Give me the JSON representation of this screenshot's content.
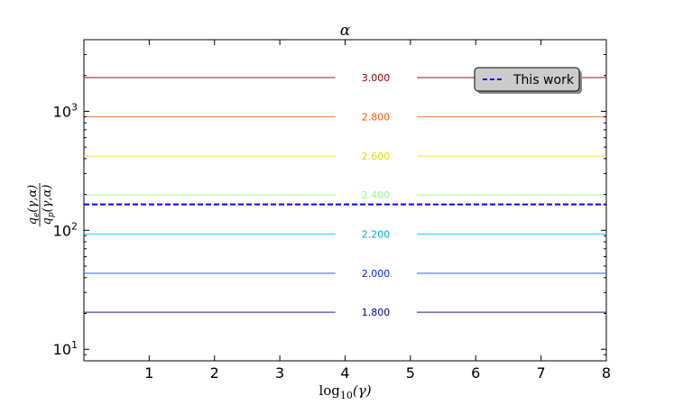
{
  "chart_data": {
    "type": "line",
    "title": "α",
    "xlabel": {
      "base": "log",
      "sub": "10",
      "arg": "(γ)"
    },
    "ylabel": {
      "numerator": {
        "q": "q",
        "sub": "e",
        "args": "(γ,α)"
      },
      "denominator": {
        "q": "q",
        "sub": "p",
        "args": "(γ,α)"
      }
    },
    "xlim": [
      0,
      8
    ],
    "ylim": [
      8,
      4000
    ],
    "yscale": "log",
    "xticks": [
      1,
      2,
      3,
      4,
      5,
      6,
      7,
      8
    ],
    "yticks": [
      {
        "value": 10,
        "base": "10",
        "exp": "1"
      },
      {
        "value": 100,
        "base": "10",
        "exp": "2"
      },
      {
        "value": 1000,
        "base": "10",
        "exp": "3"
      }
    ],
    "contours": [
      {
        "label": "1.800",
        "value": 20.5,
        "color": "#1a1a8c",
        "label_color": "#00008f"
      },
      {
        "label": "2.000",
        "value": 43.5,
        "color": "#2b5fe6",
        "label_color": "#0026d9"
      },
      {
        "label": "2.200",
        "value": 93,
        "color": "#22d3e0",
        "label_color": "#00a8d6"
      },
      {
        "label": "2.400",
        "value": 198,
        "color": "#9af59a",
        "label_color": "#8ff58a"
      },
      {
        "label": "2.600",
        "value": 420,
        "color": "#e8e832",
        "label_color": "#e3dd00"
      },
      {
        "label": "2.800",
        "value": 900,
        "color": "#ff7a3a",
        "label_color": "#ff5a00"
      },
      {
        "label": "3.000",
        "value": 1920,
        "color": "#8f1a1a",
        "label_color": "#8f0000"
      }
    ],
    "reference": {
      "name": "This work",
      "value": 165,
      "color": "#0000ff",
      "style": "dashed"
    },
    "legend_position": "top-right",
    "grid": false
  }
}
